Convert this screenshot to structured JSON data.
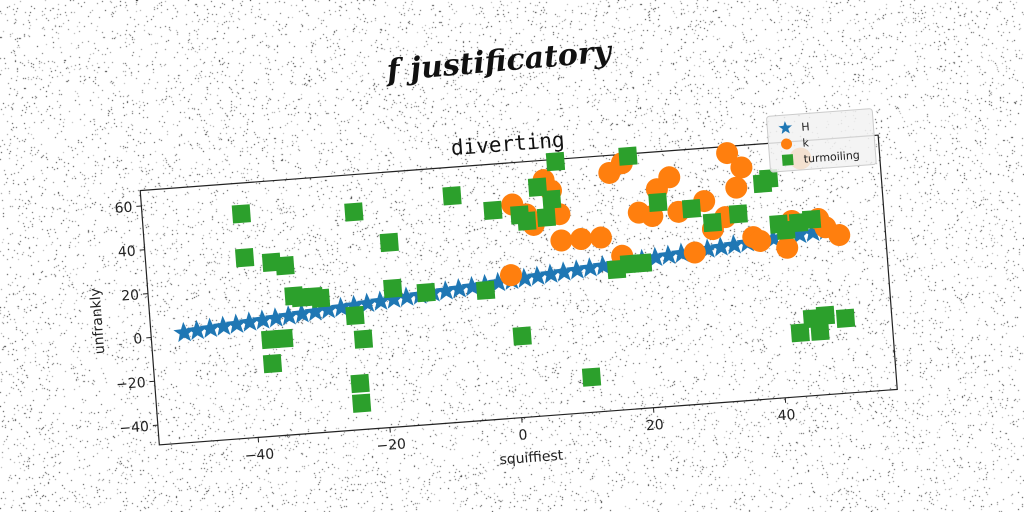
{
  "figure": {
    "title": "f justificatory"
  },
  "colors": {
    "H": "#1f77b4",
    "k": "#ff7f0e",
    "turmoiling": "#2ca02c"
  },
  "chart_data": {
    "type": "scatter",
    "title": "diverting",
    "xlabel": "squiffiest",
    "ylabel": "unfrankly",
    "xlim": [
      -55,
      57
    ],
    "ylim": [
      -49,
      67
    ],
    "xticks": [
      -40,
      -20,
      0,
      20,
      40
    ],
    "yticks": [
      -40,
      -20,
      0,
      20,
      40,
      60
    ],
    "legend": "top-right",
    "grid": false,
    "series": [
      {
        "name": "H",
        "marker": "star",
        "x": [
          -50,
          -48,
          -46,
          -44,
          -42,
          -40,
          -38,
          -36,
          -34,
          -32,
          -30,
          -28,
          -26,
          -24,
          -22,
          -20,
          -18,
          -16,
          -14,
          -12,
          -10,
          -8,
          -6,
          -4,
          -2,
          0,
          2,
          4,
          6,
          8,
          10,
          12,
          14,
          16,
          18,
          20,
          22,
          24,
          26,
          28,
          30,
          32,
          34,
          36,
          38,
          40,
          42,
          44,
          46,
          48
        ],
        "y": [
          1,
          1.5,
          2,
          2.5,
          3,
          3.5,
          4,
          4.5,
          5,
          5.5,
          6,
          6.5,
          7,
          7.5,
          8,
          8.5,
          9,
          9.5,
          10,
          10.5,
          11,
          11.5,
          12,
          12.5,
          13,
          13.5,
          14,
          14.5,
          15,
          15.5,
          16,
          16.5,
          17,
          17.5,
          18,
          18.5,
          19,
          19.5,
          20,
          20.5,
          21,
          21.5,
          22,
          22.5,
          23,
          23.5,
          24,
          24.5,
          25,
          25.5
        ]
      },
      {
        "name": "k",
        "marker": "circle",
        "x": [
          0,
          1,
          3,
          4,
          6,
          7,
          8,
          8,
          11,
          14,
          16,
          17,
          18,
          20,
          22,
          23,
          25,
          26,
          28,
          30,
          31,
          33,
          34,
          35,
          36,
          37,
          38,
          42,
          43,
          45,
          47,
          48,
          50
        ],
        "y": [
          16,
          48,
          43,
          38,
          58,
          53,
          42,
          30,
          30,
          30,
          59,
          21,
          63,
          40,
          38,
          50,
          55,
          39,
          20,
          43,
          30,
          35,
          64,
          48,
          57,
          25,
          23,
          19,
          31,
          59,
          31,
          27,
          23
        ]
      },
      {
        "name": "turmoiling",
        "marker": "square",
        "x": [
          -40,
          -40,
          -37,
          -37,
          -36,
          -35,
          -34,
          -33,
          -32,
          -30,
          -29,
          -24,
          -24,
          -24,
          -23,
          -23,
          -18,
          -18,
          -13,
          -8,
          -4,
          -2,
          1,
          2,
          3,
          5,
          6,
          7,
          8,
          11,
          16,
          18,
          19,
          20,
          23,
          28,
          31,
          35,
          39,
          40,
          41,
          42,
          43,
          44,
          45,
          46,
          46,
          47,
          50
        ],
        "y": [
          53,
          33,
          -5,
          -16,
          30,
          -5,
          28,
          14,
          13,
          13,
          12,
          3,
          -28,
          -37,
          50,
          -8,
          35,
          14,
          11,
          54,
          10,
          46,
          -12,
          43,
          40,
          55,
          41,
          49,
          66,
          -33,
          15,
          17,
          66,
          17,
          44,
          40,
          33,
          36,
          49,
          51,
          30,
          27,
          -20,
          30,
          -14,
          -20,
          31,
          -13,
          -15
        ]
      }
    ]
  }
}
